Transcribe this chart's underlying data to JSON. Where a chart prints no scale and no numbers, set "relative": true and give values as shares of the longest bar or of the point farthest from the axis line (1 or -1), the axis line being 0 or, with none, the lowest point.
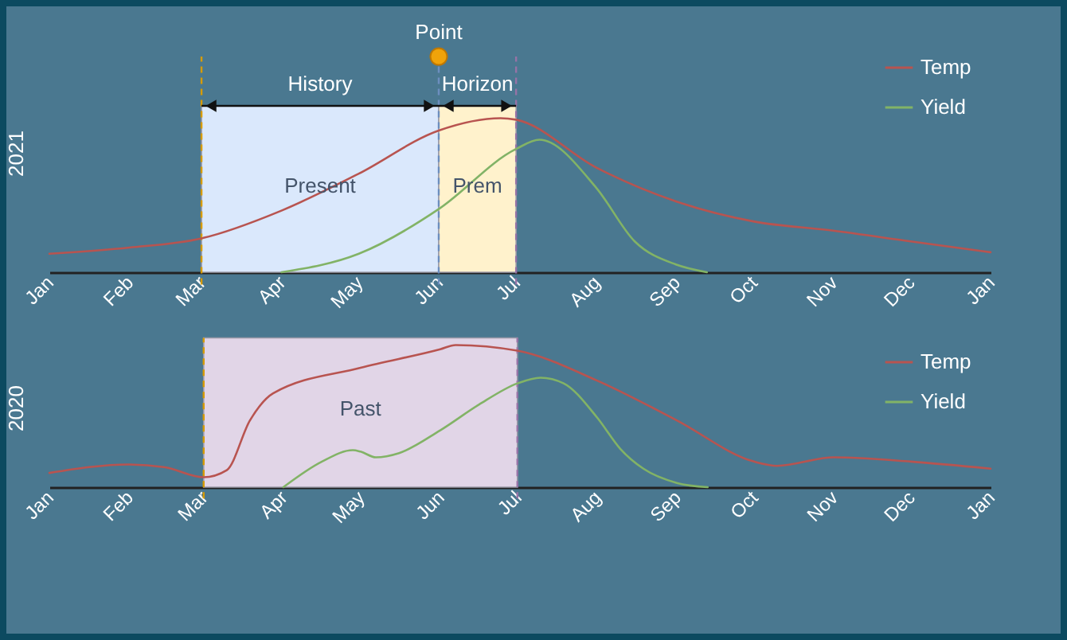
{
  "chart_data": [
    {
      "type": "line",
      "relative": true,
      "ylabel": "2021",
      "legend": "top right",
      "grid": false,
      "xlim": [
        "2021-01",
        "2022-01"
      ],
      "xticks": [
        {
          "value": "2021-01",
          "label": "Jan"
        },
        {
          "value": "2021-02",
          "label": "Feb"
        },
        {
          "value": "2021-03",
          "label": "Mar"
        },
        {
          "value": "2021-04",
          "label": "Apr"
        },
        {
          "value": "2021-05",
          "label": "May"
        },
        {
          "value": "2021-06",
          "label": "Jun"
        },
        {
          "value": "2021-07",
          "label": "Jul"
        },
        {
          "value": "2021-08",
          "label": "Aug"
        },
        {
          "value": "2021-09",
          "label": "Sep"
        },
        {
          "value": "2021-10",
          "label": "Oct"
        },
        {
          "value": "2021-11",
          "label": "Nov"
        },
        {
          "value": "2021-12",
          "label": "Dec"
        },
        {
          "value": "2022-01",
          "label": "Jan"
        }
      ],
      "series": [
        {
          "name": "Temp",
          "color": "#b85450",
          "x": [
            "2021-01",
            "2021-02",
            "2021-03",
            "2021-04",
            "2021-05",
            "2021-06",
            "2021-06-25",
            "2021-07",
            "2021-08",
            "2021-09",
            "2021-10",
            "2021-11",
            "2021-12",
            "2022-01"
          ],
          "values": [
            0.12,
            0.16,
            0.22,
            0.4,
            0.64,
            0.92,
            1.0,
            0.99,
            0.68,
            0.46,
            0.33,
            0.27,
            0.2,
            0.13
          ]
        },
        {
          "name": "Yield",
          "color": "#82b366",
          "x": [
            "2021-04",
            "2021-05",
            "2021-06",
            "2021-07",
            "2021-07-10",
            "2021-08",
            "2021-08-16",
            "2021-09",
            "2021-09-13"
          ],
          "values": [
            0,
            0.12,
            0.41,
            0.8,
            0.86,
            0.55,
            0.2,
            0.05,
            0
          ]
        }
      ],
      "bands": [
        {
          "axis": "x",
          "from": "2021-03",
          "to": "2021-06",
          "label": "Present",
          "color": "#dae8fc"
        },
        {
          "axis": "x",
          "from": "2021-06",
          "to": "2021-07",
          "label": "Prem",
          "color": "#fff2cc"
        }
      ],
      "ref_lines": [
        {
          "axis": "x",
          "value": "2021-03",
          "color": "#d79b00",
          "line_style": "dashed"
        },
        {
          "axis": "x",
          "value": "2021-06",
          "label": "Point",
          "color": "#6c8ebf",
          "line_style": "dashed"
        },
        {
          "axis": "x",
          "value": "2021-07",
          "color": "#9673a6",
          "line_style": "dashed"
        }
      ],
      "annotations": [
        "History",
        "Horizon"
      ]
    },
    {
      "type": "line",
      "relative": true,
      "ylabel": "2020",
      "legend": "top right",
      "grid": false,
      "xlim": [
        "2020-01",
        "2021-01"
      ],
      "xticks": [
        {
          "value": "2020-01",
          "label": "Jan"
        },
        {
          "value": "2020-02",
          "label": "Feb"
        },
        {
          "value": "2020-03",
          "label": "Mar"
        },
        {
          "value": "2020-04",
          "label": "Apr"
        },
        {
          "value": "2020-05",
          "label": "May"
        },
        {
          "value": "2020-06",
          "label": "Jun"
        },
        {
          "value": "2020-07",
          "label": "Jul"
        },
        {
          "value": "2020-08",
          "label": "Aug"
        },
        {
          "value": "2020-09",
          "label": "Sep"
        },
        {
          "value": "2020-10",
          "label": "Oct"
        },
        {
          "value": "2020-11",
          "label": "Nov"
        },
        {
          "value": "2020-12",
          "label": "Dec"
        },
        {
          "value": "2021-01",
          "label": "Jan"
        }
      ],
      "series": [
        {
          "name": "Temp",
          "color": "#b85450",
          "x": [
            "2020-01",
            "2020-02",
            "2020-02-15",
            "2020-03",
            "2020-03-10",
            "2020-03-19",
            "2020-03-28",
            "2020-05",
            "2020-06",
            "2020-06-07",
            "2020-07",
            "2020-08",
            "2020-09",
            "2020-10",
            "2020-10-10",
            "2020-11",
            "2020-12",
            "2021-01"
          ],
          "values": [
            0.1,
            0.16,
            0.14,
            0.07,
            0.12,
            0.47,
            0.66,
            0.84,
            0.97,
            1.0,
            0.96,
            0.75,
            0.47,
            0.18,
            0.15,
            0.21,
            0.18,
            0.13
          ]
        },
        {
          "name": "Yield",
          "color": "#82b366",
          "x": [
            "2020-04",
            "2020-04-16",
            "2020-04-28",
            "2020-05",
            "2020-05-07",
            "2020-05-16",
            "2020-06",
            "2020-06-16",
            "2020-07",
            "2020-07-10",
            "2020-07-19",
            "2020-08",
            "2020-08-10",
            "2020-08-19",
            "2020-09",
            "2020-09-13"
          ],
          "values": [
            0,
            0.18,
            0.26,
            0.25,
            0.21,
            0.24,
            0.4,
            0.58,
            0.73,
            0.77,
            0.73,
            0.49,
            0.27,
            0.13,
            0.03,
            0
          ]
        }
      ],
      "bands": [
        {
          "axis": "x",
          "from": "2020-03",
          "to": "2020-07",
          "label": "Past",
          "color": "#e1d5e7"
        }
      ],
      "ref_lines": [
        {
          "axis": "x",
          "value": "2020-03",
          "color": "#d79b00",
          "line_style": "dashed"
        },
        {
          "axis": "x",
          "value": "2020-07",
          "color": "#9673a6",
          "line_style": "dashed"
        }
      ]
    }
  ]
}
